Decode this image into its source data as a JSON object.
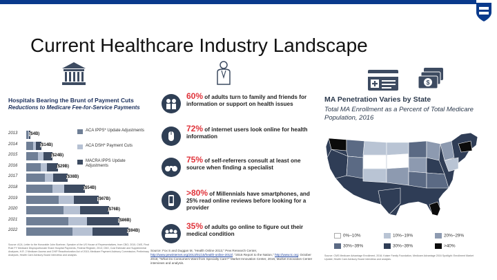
{
  "slide": {
    "title": "Current Healthcare Industry Landscape"
  },
  "left_panel": {
    "title": "Hospitals Bearing the Brunt of Payment Cuts",
    "subtitle": "Reductions to Medicare Fee-for-Service Payments",
    "legend": [
      {
        "label": "ACA IPPS* Update Adjustments",
        "color": "#6f7f96"
      },
      {
        "label": "ACA DSH* Payment Cuts",
        "color": "#b6c1d3"
      },
      {
        "label": "MACRA IPPS Update Adjustments",
        "color": "#3d4b61"
      }
    ],
    "source": "Source: ACA; Letter to the Honorable John Boehner, Speaker of the US House of Representatives, from CBO; 2010; CMS, Final Rule FY Medicare Disproportionate Share Hospital Payments, Federal Register, 2013; CBO, Cost Estimate and Supplemental Analyses, H.R. 2 Medicare Access and CHIP Reauthorization Act of 2015; Medicare Payment Advisory Commission; Preliminary Analyses, Health Care Advisory Board interviews and analysis."
  },
  "chart_data": {
    "type": "bar",
    "title": "Hospitals Bearing the Brunt of Payment Cuts",
    "subtitle": "Reductions to Medicare Fee-for-Service Payments",
    "categories": [
      "2013",
      "2014",
      "2015",
      "2016",
      "2017",
      "2018",
      "2019",
      "2020",
      "2021",
      "2022"
    ],
    "value_labels": [
      "($4B)",
      "($14B)",
      "($24B)",
      "($29B)",
      "($38B)",
      "($54B)",
      "($67B)",
      "($76B)",
      "($86B)",
      "($94B)"
    ],
    "values": [
      4,
      14,
      24,
      29,
      38,
      54,
      67,
      76,
      86,
      94
    ],
    "series_colors": [
      "#6f7f96",
      "#b6c1d3",
      "#3d4b61"
    ],
    "xlabel": "",
    "ylabel": ""
  },
  "center_panel": {
    "stats": [
      {
        "icon": "family-icon",
        "pct": "60%",
        "text": " of adults turn to family and friends for information or support on health issues"
      },
      {
        "icon": "mouse-icon",
        "pct": "72%",
        "text": " of internet users look online for health information"
      },
      {
        "icon": "binoculars-icon",
        "pct": "75%",
        "text": " of self-referrers consult at least one source when finding a specialist"
      },
      {
        "icon": "smartphone-icon",
        "pct": ">80%",
        "text": " of Millennials have smartphones, and 25% read online reviews before looking for a provider"
      },
      {
        "icon": "people-icon",
        "pct": "35%",
        "text": " of adults go online to figure out their medical condition"
      }
    ],
    "source_prefix": "Source: Fox S and Duggan M, \"Health Online 2013,\" Pew Research Center, ",
    "source_link1": "http://www.pewinternet.org/2013/01/15/health-online-2013/",
    "source_mid": "; \"2016 Report to the Nation,\" ",
    "source_link2": "http://www.tc.org",
    "source_tail": "; October 2016; \"What Do Consumers Want from Specialty Care?\" Market Innovation Center, 2015; Market Innovation Center interviews and analysis."
  },
  "right_panel": {
    "title": "MA Penetration Varies by State",
    "subtitle": "Total MA Enrollment as a Percent of Total Medicare Population, 2016",
    "legend": [
      {
        "label": "0%–10%",
        "color": "#ffffff"
      },
      {
        "label": "10%–19%",
        "color": "#b9c4d4"
      },
      {
        "label": "20%–29%",
        "color": "#8d9ab0"
      },
      {
        "label": "30%–39%",
        "color": "#5b6a84"
      },
      {
        "label": "30%–39%",
        "color": "#2f3d56"
      },
      {
        "label": ">40%",
        "color": "#0b0b0b"
      }
    ],
    "source": "Source: CMS Medicare Advantage Enrollment, 2016; Kaiser Family Foundation, Medicare Advantage 2016 Spotlight: Enrollment Market Update; Health Care Advisory Board interviews and analysis."
  }
}
